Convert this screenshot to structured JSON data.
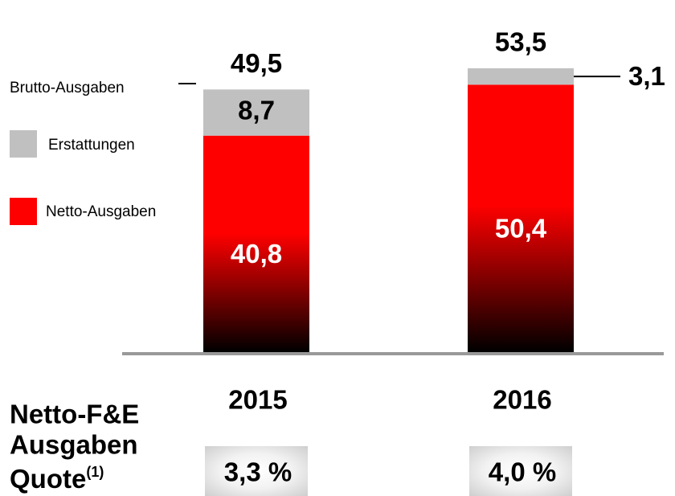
{
  "chart_data": {
    "type": "stacked_bar",
    "categories": [
      "2015",
      "2016"
    ],
    "series": [
      {
        "name": "Netto-Ausgaben",
        "color": "#ff0000",
        "values": [
          40.8,
          50.4
        ],
        "value_labels": [
          "40,8",
          "50,4"
        ]
      },
      {
        "name": "Erstattungen",
        "color": "#c0c0c0",
        "values": [
          8.7,
          3.1
        ],
        "value_labels": [
          "8,7",
          "3,1"
        ]
      }
    ],
    "totals": {
      "name": "Brutto-Ausgaben",
      "values": [
        49.5,
        53.5
      ],
      "value_labels": [
        "49,5",
        "53,5"
      ]
    },
    "ratio": {
      "title_lines": [
        "Netto-F&E",
        "Ausgaben",
        "Quote"
      ],
      "note": "(1)",
      "values": [
        3.3,
        4.0
      ],
      "value_labels": [
        "3,3 %",
        "4,0 %"
      ]
    }
  }
}
